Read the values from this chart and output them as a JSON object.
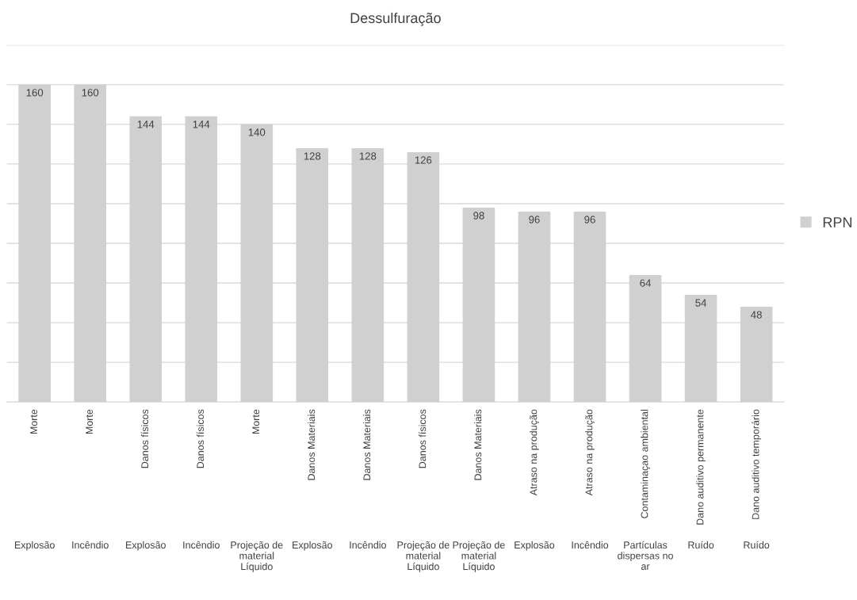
{
  "chart_data": {
    "type": "bar",
    "title": "Dessulfuração",
    "categories": [
      "Morte\nExplosão",
      "Morte\nIncêndio",
      "Danos físicos\nExplosão",
      "Danos físicos\nIncêndio",
      "Morte\nProjeção de\nmaterial\nLíquido",
      "Danos Materiais\nExplosão",
      "Danos Materiais\nIncêndio",
      "Danos físicos\nProjeção de\nmaterial\nLíquido",
      "Danos Materiais\nProjeção de\nmaterial\nLíquido",
      "Atraso na produção\nExplosão",
      "Atraso na produção\nIncêndio",
      "Contaminaçao ambiental\nPartículas\ndispersas no\nar",
      "Dano auditivo permanente\nRuído",
      "Dano auditivo temporário\nRuído"
    ],
    "series": [
      {
        "name": "RPN",
        "color": "#d0d0d0",
        "values": [
          160,
          160,
          144,
          144,
          140,
          128,
          128,
          126,
          98,
          96,
          96,
          64,
          54,
          48
        ]
      }
    ],
    "ylim": [
      0,
      180
    ],
    "yticks": [
      {
        "value": 0,
        "label": null
      },
      {
        "value": 20,
        "label": null
      },
      {
        "value": 40,
        "label": null
      },
      {
        "value": 60,
        "label": null
      },
      {
        "value": 80,
        "label": null
      },
      {
        "value": 100,
        "label": null
      },
      {
        "value": 120,
        "label": null
      },
      {
        "value": 140,
        "label": null
      },
      {
        "value": 160,
        "label": null
      },
      {
        "value": 180,
        "label": null
      }
    ],
    "grid": "y",
    "legend": "right",
    "data_labels": true
  }
}
